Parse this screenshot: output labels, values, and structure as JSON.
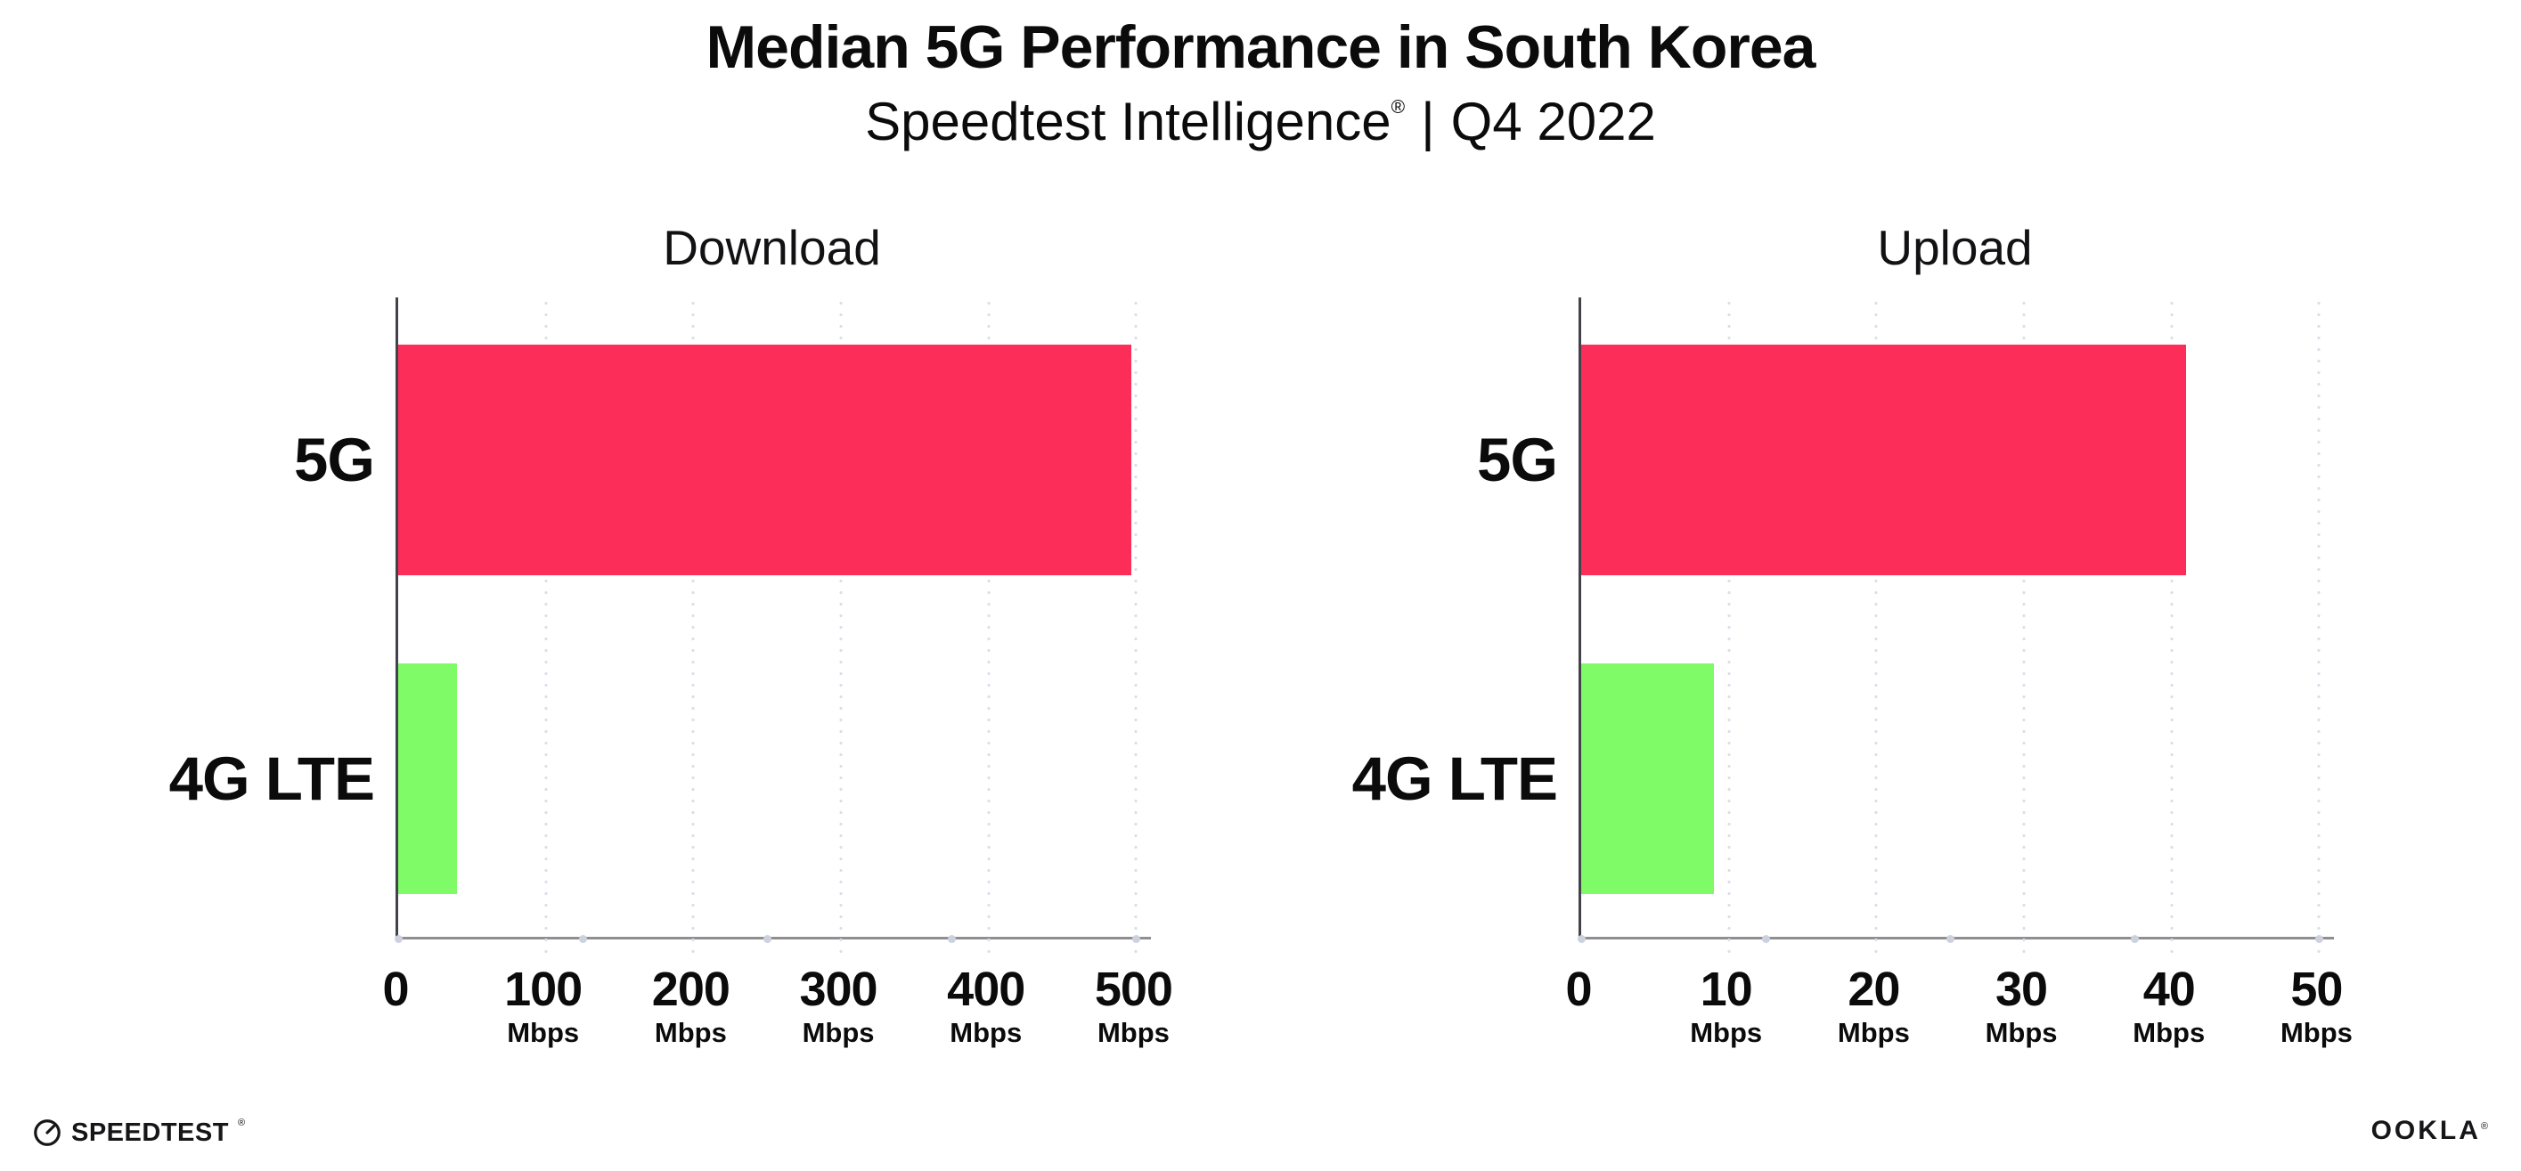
{
  "header": {
    "title": "Median 5G Performance in South Korea",
    "subtitle": {
      "brand": "Speedtest Intelligence",
      "reg_mark": "®",
      "separator": "|",
      "period": "Q4 2022"
    }
  },
  "chart_data": [
    {
      "type": "bar",
      "orientation": "horizontal",
      "title": "Download",
      "categories": [
        "5G",
        "4G LTE"
      ],
      "values": [
        497,
        40
      ],
      "unit": "Mbps",
      "xlim": [
        0,
        510
      ],
      "xticks": [
        0,
        100,
        200,
        300,
        400,
        500
      ],
      "xtick_unit_label": "Mbps",
      "grid": "dotted vertical gridlines at each tick",
      "bar_colors": [
        "#FC2E59",
        "#7EFB66"
      ]
    },
    {
      "type": "bar",
      "orientation": "horizontal",
      "title": "Upload",
      "categories": [
        "5G",
        "4G LTE"
      ],
      "values": [
        41,
        9
      ],
      "unit": "Mbps",
      "xlim": [
        0,
        51
      ],
      "xticks": [
        0,
        10,
        20,
        30,
        40,
        50
      ],
      "xtick_unit_label": "Mbps",
      "grid": "dotted vertical gridlines at each tick",
      "bar_colors": [
        "#FC2E59",
        "#7EFB66"
      ]
    }
  ],
  "footer": {
    "speedtest_logo_text": "SPEEDTEST",
    "speedtest_reg": "®",
    "ookla_logo_text": "OOKLA",
    "ookla_reg": "®"
  },
  "colors": {
    "bar_5g": "#FC2E59",
    "bar_4g_lte": "#7EFB66",
    "grid_dot": "#DCDFE9",
    "axis_quarter_dot": "#CCD1DD",
    "left_spine": "#42424B",
    "bottom_axis": "#8E8E93",
    "text": "#0B0B0C",
    "background": "#FFFFFF"
  }
}
